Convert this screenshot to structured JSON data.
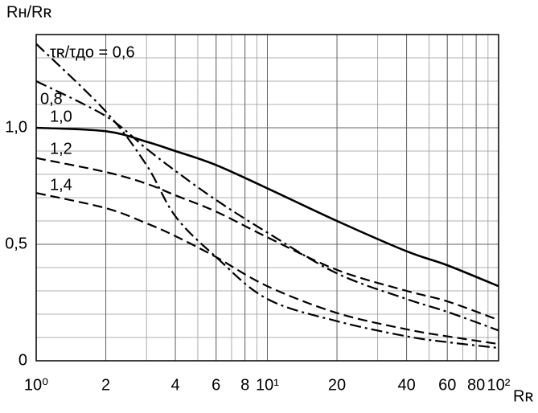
{
  "chart_data": {
    "type": "line",
    "xscale": "log",
    "ylabel": "Rн/Rʀ",
    "xlabel": "Rʀ",
    "x": [
      1,
      2,
      3,
      4,
      6,
      10,
      20,
      40,
      60,
      100
    ],
    "series": [
      {
        "name": "τʀ/τдо = 0,6",
        "color": "#000000",
        "dash": "14,5,3,5",
        "values": [
          1.36,
          1.07,
          0.84,
          0.62,
          0.445,
          0.265,
          0.17,
          0.105,
          0.08,
          0.055
        ]
      },
      {
        "name": "0,8",
        "color": "#000000",
        "dash": "14,5,3,5",
        "values": [
          1.2,
          1.05,
          0.91,
          0.815,
          0.69,
          0.55,
          0.375,
          0.265,
          0.21,
          0.13
        ]
      },
      {
        "name": "1,0",
        "color": "#000000",
        "dash": "none",
        "values": [
          1.0,
          0.985,
          0.94,
          0.9,
          0.84,
          0.74,
          0.6,
          0.47,
          0.41,
          0.32
        ]
      },
      {
        "name": "1,2",
        "color": "#000000",
        "dash": "12,6",
        "values": [
          0.87,
          0.81,
          0.76,
          0.71,
          0.64,
          0.53,
          0.39,
          0.3,
          0.255,
          0.175
        ]
      },
      {
        "name": "1,4",
        "color": "#000000",
        "dash": "12,6",
        "values": [
          0.72,
          0.655,
          0.59,
          0.535,
          0.445,
          0.32,
          0.205,
          0.135,
          0.105,
          0.072
        ]
      }
    ],
    "xlim": [
      1,
      100
    ],
    "ylim": [
      0,
      1.4
    ],
    "xticks": [
      {
        "value": 1,
        "label": "10⁰"
      },
      2,
      4,
      6,
      8,
      {
        "value": 10,
        "label": "10¹"
      },
      20,
      40,
      60,
      80,
      {
        "value": 100,
        "label": "10²"
      }
    ],
    "yticks": [
      0,
      {
        "value": 0.5,
        "label": "0,5"
      },
      {
        "value": 1,
        "label": "1,0"
      }
    ],
    "grid": true
  }
}
